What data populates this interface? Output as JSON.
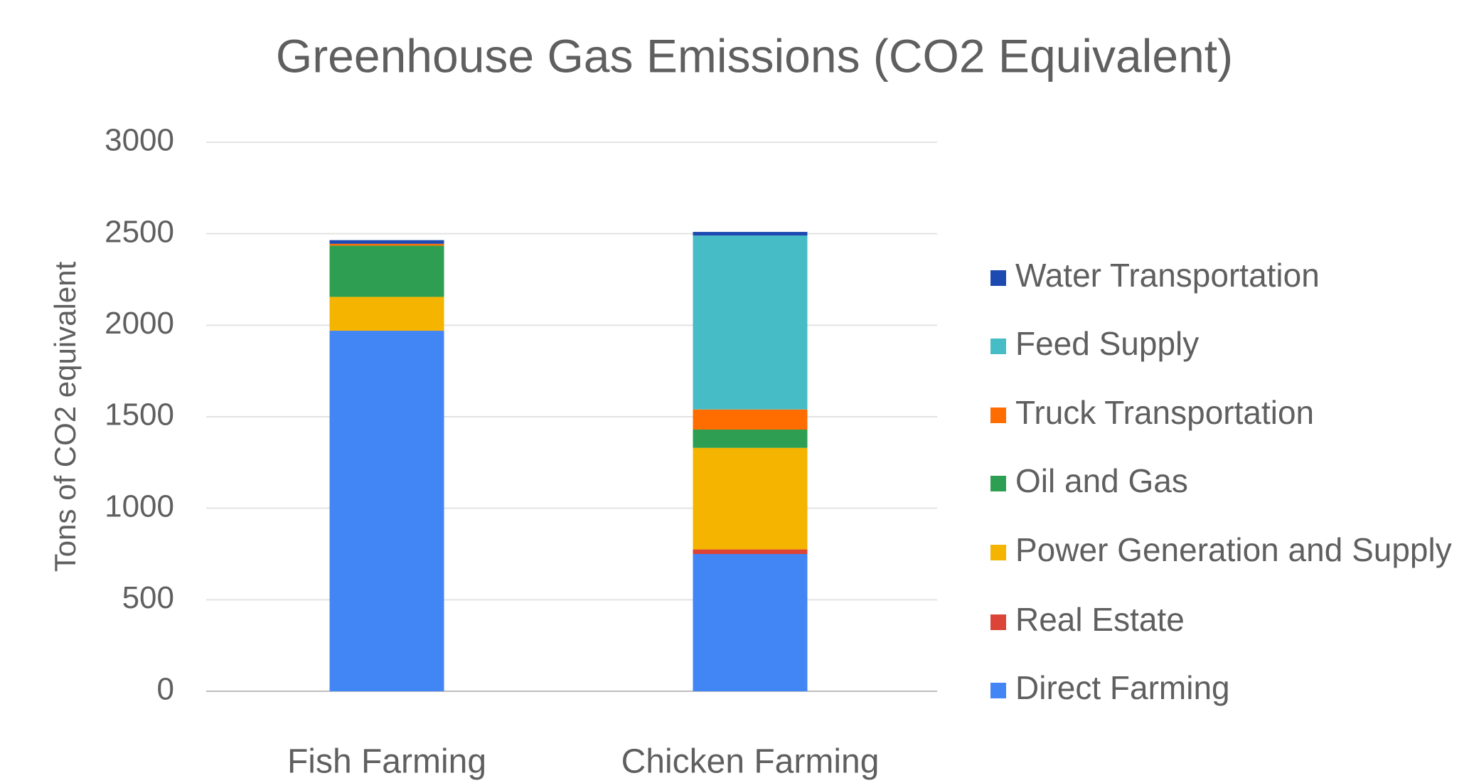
{
  "chart_data": {
    "type": "stacked_bar",
    "title": "Greenhouse Gas Emissions (CO2 Equivalent)",
    "y_label": "Tons of CO2 equivalent",
    "categories": [
      "Fish Farming",
      "Chicken Farming"
    ],
    "series": [
      {
        "name": "Direct Farming",
        "color": "#4285f4",
        "values": [
          1970,
          750
        ]
      },
      {
        "name": "Real Estate",
        "color": "#db4437",
        "values": [
          0,
          25
        ]
      },
      {
        "name": "Power Generation and Supply",
        "color": "#f4b400",
        "values": [
          185,
          555
        ]
      },
      {
        "name": "Oil and Gas",
        "color": "#2e9e52",
        "values": [
          280,
          100
        ]
      },
      {
        "name": "Truck Transportation",
        "color": "#ff6d01",
        "values": [
          10,
          110
        ]
      },
      {
        "name": "Feed Supply",
        "color": "#46bdc6",
        "values": [
          0,
          950
        ]
      },
      {
        "name": "Water Transportation",
        "color": "#1c4ab0",
        "values": [
          20,
          20
        ]
      }
    ],
    "ylim": [
      0,
      3000
    ],
    "yticks": [
      0,
      500,
      1000,
      1500,
      2000,
      2500,
      3000
    ],
    "grid": true,
    "legend": "right"
  }
}
